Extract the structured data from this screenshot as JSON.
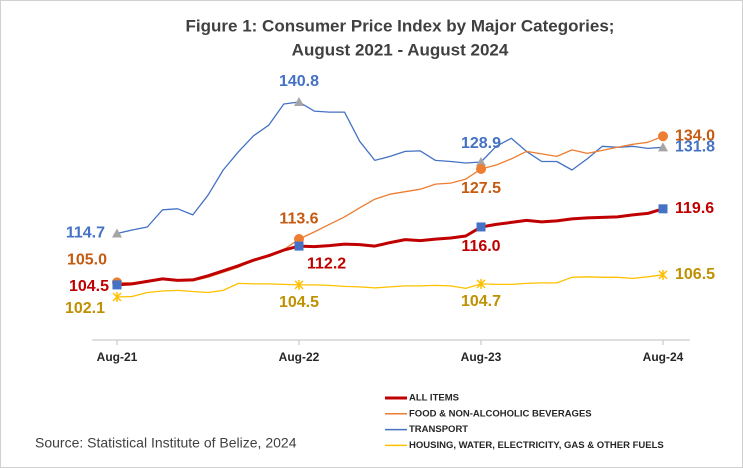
{
  "chart_data": {
    "type": "line",
    "title": [
      "Figure 1: Consumer Price Index by Major Categories;",
      "August 2021 - August 2024"
    ],
    "source": "Source: Statistical Institute of Belize, 2024",
    "categories": [
      "Aug-21",
      null,
      null,
      null,
      null,
      null,
      null,
      null,
      null,
      null,
      null,
      null,
      "Aug-22",
      null,
      null,
      null,
      null,
      null,
      null,
      null,
      null,
      null,
      null,
      null,
      "Aug-23",
      null,
      null,
      null,
      null,
      null,
      null,
      null,
      null,
      null,
      null,
      null,
      "Aug-24"
    ],
    "series": [
      {
        "name": "ALL ITEMS",
        "color": "#c00000",
        "marker": "square",
        "marker_color": "#4472c4",
        "label_color": "#c00000",
        "values": [
          104.5,
          104.7,
          105.2,
          105.7,
          105.4,
          105.5,
          106.3,
          107.3,
          108.3,
          109.4,
          110.3,
          111.4,
          112.2,
          112.1,
          112.3,
          112.6,
          112.5,
          112.2,
          112.9,
          113.5,
          113.3,
          113.6,
          113.8,
          114.2,
          116.0,
          116.5,
          116.9,
          117.3,
          117.0,
          117.2,
          117.6,
          117.8,
          117.9,
          118.0,
          118.4,
          118.7,
          119.6
        ],
        "value_labels": [
          "104.5",
          null,
          null,
          null,
          null,
          null,
          null,
          null,
          null,
          null,
          null,
          null,
          "112.2",
          null,
          null,
          null,
          null,
          null,
          null,
          null,
          null,
          null,
          null,
          null,
          "116.0",
          null,
          null,
          null,
          null,
          null,
          null,
          null,
          null,
          null,
          null,
          null,
          "119.6"
        ]
      },
      {
        "name": "FOOD & NON-ALCOHOLIC BEVERAGES",
        "color": "#ed7d31",
        "marker": "circle",
        "marker_color": "#ed7d31",
        "label_color": "#c55a11",
        "values": [
          105.0,
          104.9,
          105.3,
          105.8,
          105.5,
          105.3,
          106.0,
          107.0,
          108.0,
          109.5,
          110.5,
          111.5,
          113.6,
          115.0,
          116.5,
          118.0,
          119.8,
          121.5,
          122.5,
          123.0,
          123.5,
          124.5,
          124.7,
          125.5,
          127.5,
          128.3,
          129.5,
          131.0,
          130.5,
          130.0,
          131.3,
          130.6,
          131.2,
          131.8,
          132.4,
          132.8,
          134.0
        ],
        "value_labels": [
          "105.0",
          null,
          null,
          null,
          null,
          null,
          null,
          null,
          null,
          null,
          null,
          null,
          "113.6",
          null,
          null,
          null,
          null,
          null,
          null,
          null,
          null,
          null,
          null,
          null,
          "127.5",
          null,
          null,
          null,
          null,
          null,
          null,
          null,
          null,
          null,
          null,
          null,
          "134.0"
        ]
      },
      {
        "name": "TRANSPORT",
        "color": "#4472c4",
        "marker": "triangle",
        "marker_color": "#a5a5a5",
        "label_color": "#4472c4",
        "values": [
          114.7,
          115.4,
          116.0,
          119.4,
          119.6,
          118.4,
          122.3,
          127.3,
          130.9,
          134.1,
          136.2,
          140.4,
          140.8,
          139.0,
          138.8,
          138.8,
          133.0,
          129.2,
          130.0,
          131.0,
          131.1,
          129.2,
          129.0,
          128.7,
          128.9,
          132.0,
          133.6,
          131.0,
          129.0,
          129.0,
          127.3,
          129.5,
          132.0,
          131.8,
          132.0,
          131.6,
          131.8
        ],
        "value_labels": [
          "114.7",
          null,
          null,
          null,
          null,
          null,
          null,
          null,
          null,
          null,
          null,
          null,
          "140.8",
          null,
          null,
          null,
          null,
          null,
          null,
          null,
          null,
          null,
          null,
          null,
          "128.9",
          null,
          null,
          null,
          null,
          null,
          null,
          null,
          null,
          null,
          null,
          null,
          "131.8"
        ]
      },
      {
        "name": "HOUSING, WATER, ELECTRICITY, GAS & OTHER FUELS",
        "color": "#ffc000",
        "marker": "star",
        "marker_color": "#ffc000",
        "label_color": "#bf9000",
        "values": [
          102.1,
          102.2,
          103.0,
          103.3,
          103.4,
          103.2,
          103.0,
          103.4,
          104.8,
          104.7,
          104.7,
          104.6,
          104.5,
          104.5,
          104.4,
          104.2,
          104.1,
          103.9,
          104.1,
          104.3,
          104.3,
          104.4,
          104.3,
          103.8,
          104.7,
          104.6,
          104.6,
          104.8,
          104.9,
          104.9,
          106.0,
          106.1,
          106.0,
          106.0,
          105.8,
          106.1,
          106.5
        ],
        "value_labels": [
          "102.1",
          null,
          null,
          null,
          null,
          null,
          null,
          null,
          null,
          null,
          null,
          null,
          "104.5",
          null,
          null,
          null,
          null,
          null,
          null,
          null,
          null,
          null,
          null,
          null,
          "104.7",
          null,
          null,
          null,
          null,
          null,
          null,
          null,
          null,
          null,
          null,
          null,
          "106.5"
        ]
      }
    ],
    "legend": "bottom-right"
  }
}
